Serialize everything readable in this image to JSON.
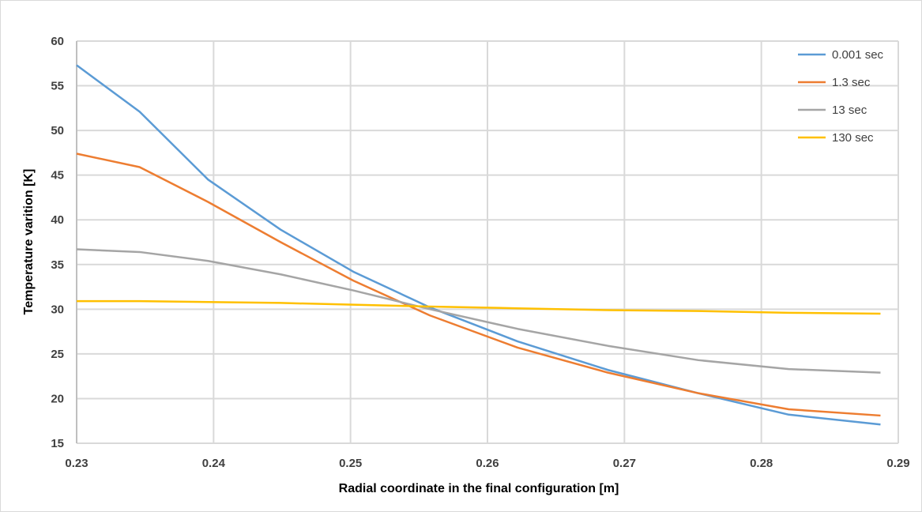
{
  "chart_data": {
    "type": "line",
    "title": "",
    "xlabel": "Radial coordinate in the final configuration [m]",
    "ylabel": "Temperature varition [K]",
    "xlim": [
      0.23,
      0.29
    ],
    "ylim": [
      15,
      60
    ],
    "x_ticks": [
      "0.23",
      "0.24",
      "0.25",
      "0.26",
      "0.27",
      "0.28",
      "0.29"
    ],
    "y_ticks": [
      "15",
      "20",
      "25",
      "30",
      "35",
      "40",
      "45",
      "50",
      "55",
      "60"
    ],
    "grid": true,
    "legend_position": "top-right",
    "x": [
      0.23,
      0.2346,
      0.2396,
      0.2449,
      0.2502,
      0.2558,
      0.2622,
      0.2688,
      0.2754,
      0.282,
      0.2887
    ],
    "series": [
      {
        "name": "0.001 sec",
        "color": "#5b9bd5",
        "values": [
          57.3,
          52.1,
          44.5,
          38.9,
          34.2,
          30.2,
          26.4,
          23.2,
          20.6,
          18.2,
          17.1
        ]
      },
      {
        "name": "1.3 sec",
        "color": "#ed7d31",
        "values": [
          47.4,
          45.9,
          42.0,
          37.5,
          33.2,
          29.3,
          25.7,
          22.9,
          20.6,
          18.8,
          18.1
        ]
      },
      {
        "name": "13 sec",
        "color": "#a5a5a5",
        "values": [
          36.7,
          36.4,
          35.4,
          33.9,
          32.1,
          30.0,
          27.8,
          25.9,
          24.3,
          23.3,
          22.9
        ]
      },
      {
        "name": "130 sec",
        "color": "#ffc000",
        "values": [
          30.9,
          30.9,
          30.8,
          30.7,
          30.5,
          30.3,
          30.1,
          29.9,
          29.8,
          29.6,
          29.5
        ]
      }
    ]
  }
}
